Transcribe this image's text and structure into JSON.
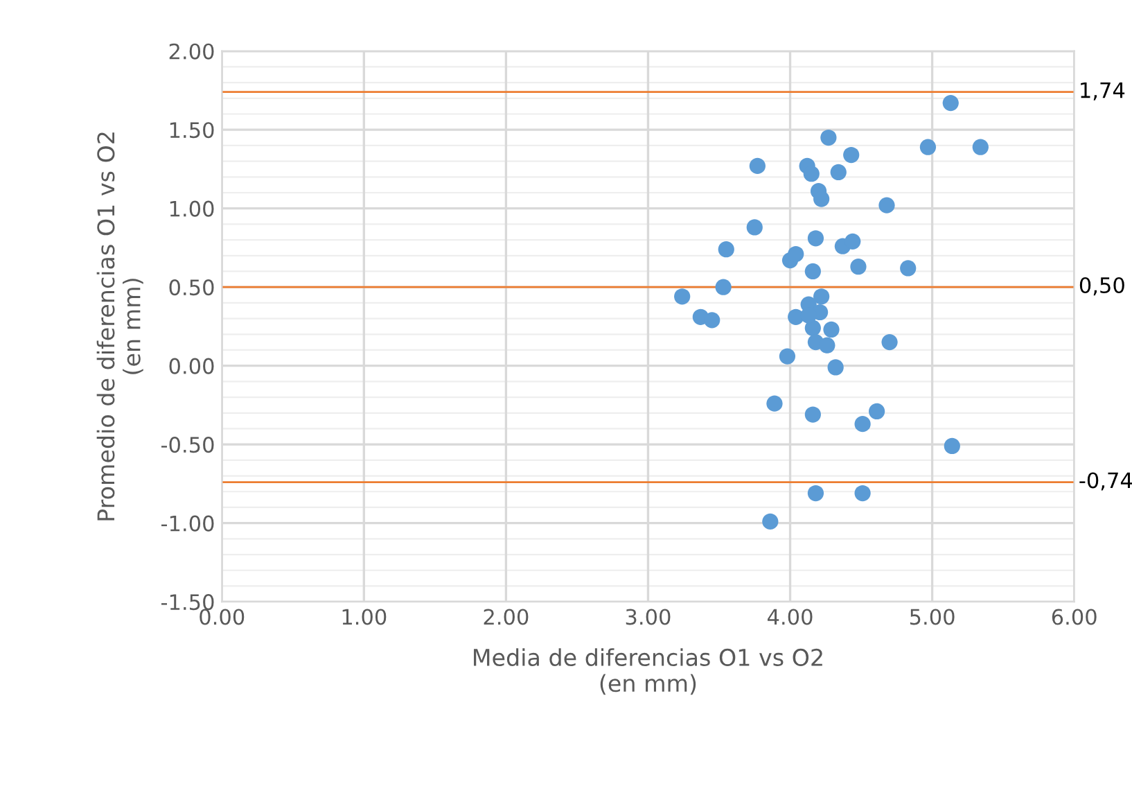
{
  "chart_data": {
    "type": "scatter",
    "xlabel": "Media de diferencias O1 vs O2\n(en mm)",
    "ylabel": "Promedio de diferencias O1 vs O2\n(en mm)",
    "x": [
      5.13,
      4.27,
      4.43,
      4.97,
      5.34,
      3.77,
      4.12,
      4.15,
      4.34,
      4.2,
      4.22,
      4.68,
      3.75,
      3.55,
      4.18,
      4.37,
      4.44,
      4.0,
      4.04,
      4.16,
      4.48,
      4.83,
      3.53,
      3.24,
      3.37,
      3.45,
      4.22,
      4.13,
      4.04,
      4.21,
      4.16,
      4.29,
      4.18,
      4.26,
      4.13,
      4.7,
      3.98,
      4.32,
      3.89,
      4.16,
      4.61,
      4.51,
      5.14,
      4.18,
      4.51,
      3.86
    ],
    "values": [
      1.67,
      1.45,
      1.34,
      1.39,
      1.39,
      1.27,
      1.27,
      1.22,
      1.23,
      1.11,
      1.06,
      1.02,
      0.88,
      0.74,
      0.81,
      0.76,
      0.79,
      0.67,
      0.71,
      0.6,
      0.63,
      0.62,
      0.5,
      0.44,
      0.31,
      0.29,
      0.44,
      0.39,
      0.31,
      0.34,
      0.24,
      0.23,
      0.15,
      0.13,
      0.32,
      0.15,
      0.06,
      -0.01,
      -0.24,
      -0.31,
      -0.29,
      -0.37,
      -0.51,
      -0.81,
      -0.81,
      -0.99
    ],
    "color": "#5b9bd5",
    "marker": "circle",
    "xlim": [
      0,
      6
    ],
    "xticks": [
      {
        "value": 0,
        "label": "0.00"
      },
      {
        "value": 1,
        "label": "1.00"
      },
      {
        "value": 2,
        "label": "2.00"
      },
      {
        "value": 3,
        "label": "3.00"
      },
      {
        "value": 4,
        "label": "4.00"
      },
      {
        "value": 5,
        "label": "5.00"
      },
      {
        "value": 6,
        "label": "6.00"
      }
    ],
    "ylim": [
      -1.5,
      2
    ],
    "yticks": [
      {
        "value": -1.5,
        "label": "-1.50"
      },
      {
        "value": -1,
        "label": "-1.00"
      },
      {
        "value": -0.5,
        "label": "-0.50"
      },
      {
        "value": 0,
        "label": "0.00"
      },
      {
        "value": 0.5,
        "label": "0.50"
      },
      {
        "value": 1,
        "label": "1.00"
      },
      {
        "value": 1.5,
        "label": "1.50"
      },
      {
        "value": 2,
        "label": "2.00"
      }
    ],
    "grid": true,
    "ref_lines": [
      {
        "axis": "y",
        "value": 1.74,
        "label": "1,74",
        "color": "#ed7d31"
      },
      {
        "axis": "y",
        "value": 0.5,
        "label": "0,50",
        "color": "#ed7d31"
      },
      {
        "axis": "y",
        "value": -0.74,
        "label": "-0,74",
        "color": "#ed7d31"
      }
    ]
  }
}
